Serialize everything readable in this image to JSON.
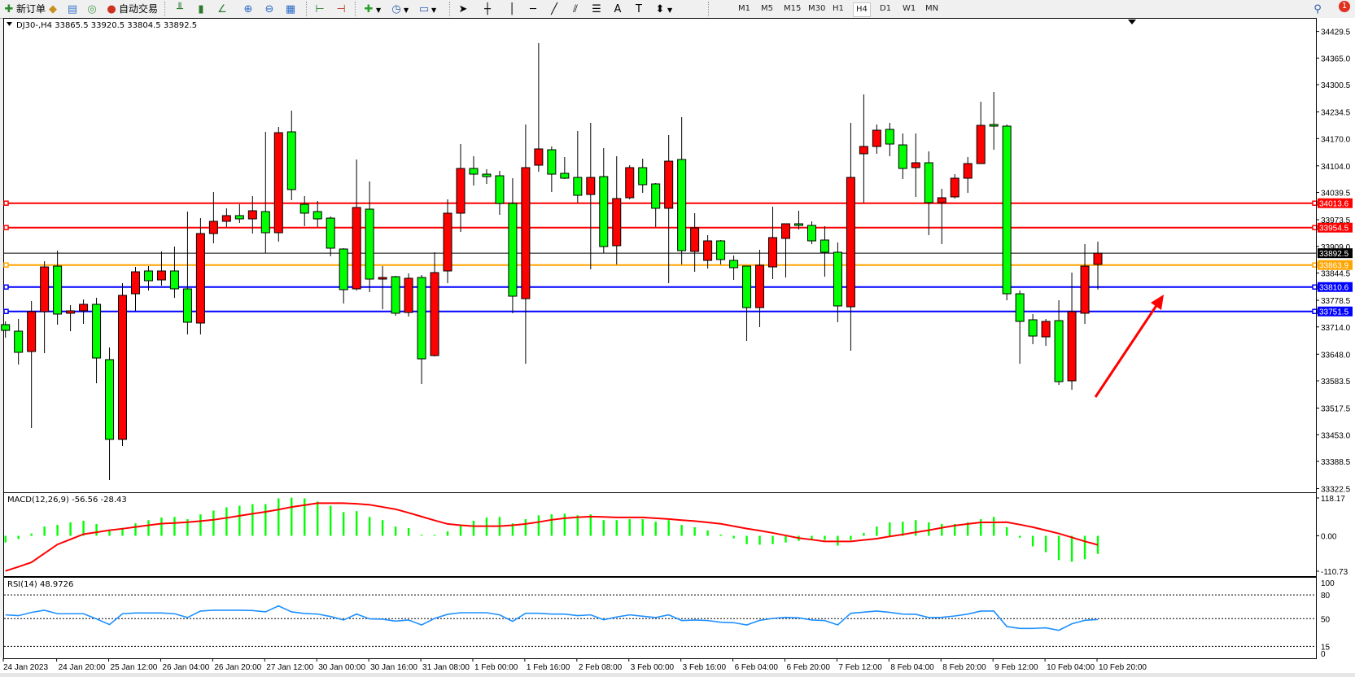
{
  "toolbar": {
    "new_order": "新订单",
    "auto_trading": "自动交易",
    "timeframes": [
      "M1",
      "M5",
      "M15",
      "M30",
      "H1",
      "H4",
      "D1",
      "W1",
      "MN"
    ],
    "active_timeframe": "H4",
    "notification_count": "1",
    "icons": [
      "new-order-icon",
      "history-icon",
      "navigator-icon",
      "signal-icon",
      "auto-trading-icon",
      "bar-chart-icon",
      "candlestick-icon",
      "line-chart-icon",
      "zoom-in-icon",
      "zoom-out-icon",
      "tile-windows-icon",
      "chart-shift-icon",
      "autoscroll-icon",
      "indicators-icon",
      "periods-icon",
      "templates-icon",
      "cursor-icon",
      "crosshair-icon",
      "vertical-line-icon",
      "horizontal-line-icon",
      "trendline-icon",
      "equidistant-channel-icon",
      "fibonacci-icon",
      "text-icon",
      "text-label-icon",
      "arrows-icon",
      "search-icon",
      "notification-icon"
    ]
  },
  "chart": {
    "header": "DJ30-,H4  33865.5 33920.5 33804.5 33892.5",
    "symbol": "DJ30-",
    "timeframe": "H4",
    "up_color": "#ff0000",
    "down_color": "#00ff00",
    "price_ticks": [
      "34429.5",
      "34365.0",
      "34300.5",
      "34234.5",
      "34170.0",
      "34104.0",
      "34039.5",
      "33973.5",
      "33909.0",
      "33844.5",
      "33778.5",
      "33714.0",
      "33648.0",
      "33583.5",
      "33517.5",
      "33453.0",
      "33388.5",
      "33322.5"
    ],
    "price_range": [
      33322.5,
      34429.5
    ],
    "current_price": {
      "value": "33892.5",
      "color": "#000000"
    },
    "levels": [
      {
        "value": "34013.6",
        "color": "#ff0000"
      },
      {
        "value": "33954.5",
        "color": "#ff0000"
      },
      {
        "value": "33863.9",
        "color": "#ffa500"
      },
      {
        "value": "33810.6",
        "color": "#0000ff"
      },
      {
        "value": "33751.5",
        "color": "#0000ff"
      }
    ],
    "time_labels": [
      "24 Jan 2023",
      "24 Jan 20:00",
      "25 Jan 12:00",
      "26 Jan 04:00",
      "26 Jan 20:00",
      "27 Jan 12:00",
      "30 Jan 00:00",
      "30 Jan 16:00",
      "31 Jan 08:00",
      "1 Feb 00:00",
      "1 Feb 16:00",
      "2 Feb 08:00",
      "3 Feb 00:00",
      "3 Feb 16:00",
      "6 Feb 04:00",
      "6 Feb 20:00",
      "7 Feb 12:00",
      "8 Feb 04:00",
      "8 Feb 20:00",
      "9 Feb 12:00",
      "10 Feb 04:00",
      "10 Feb 20:00"
    ],
    "annotation_arrow_color": "#ff0000"
  },
  "chart_data": [
    {
      "type": "candlestick",
      "title": "DJ30-,H4",
      "fields": [
        "open",
        "high",
        "low",
        "close"
      ],
      "ylim": [
        33322.5,
        34429.5
      ],
      "ohlc": [
        [
          33719.5,
          33727.4,
          33688.0,
          33705.7
        ],
        [
          33703.7,
          33733.3,
          33623.0,
          33652.5
        ],
        [
          33654.5,
          33776.6,
          33469.3,
          33751.0
        ],
        [
          33751.0,
          33873.1,
          33650.5,
          33859.3
        ],
        [
          33861.3,
          33898.7,
          33719.5,
          33745.1
        ],
        [
          33747.1,
          33766.8,
          33703.7,
          33753.0
        ],
        [
          33753.0,
          33780.5,
          33721.4,
          33768.7
        ],
        [
          33768.7,
          33784.5,
          33577.6,
          33638.7
        ],
        [
          33634.8,
          33664.3,
          33343.2,
          33441.7
        ],
        [
          33441.7,
          33819.9,
          33425.9,
          33790.4
        ],
        [
          33794.3,
          33859.3,
          33753.0,
          33847.5
        ],
        [
          33849.5,
          33861.3,
          33802.2,
          33825.9
        ],
        [
          33827.8,
          33896.8,
          33814.0,
          33849.5
        ],
        [
          33849.5,
          33908.6,
          33784.5,
          33806.2
        ],
        [
          33806.2,
          33993.3,
          33695.8,
          33725.4
        ],
        [
          33723.4,
          33977.5,
          33695.8,
          33940.1
        ],
        [
          33940.1,
          34040.6,
          33916.5,
          33969.7
        ],
        [
          33969.7,
          34001.2,
          33955.9,
          33983.5
        ],
        [
          33983.5,
          34011.0,
          33965.7,
          33975.6
        ],
        [
          33975.6,
          34030.7,
          33940.1,
          33995.3
        ],
        [
          33993.3,
          34186.4,
          33892.8,
          33942.1
        ],
        [
          33942.1,
          34198.2,
          33920.4,
          34184.4
        ],
        [
          34186.4,
          34237.6,
          34020.9,
          34046.5
        ],
        [
          34011.0,
          34030.7,
          33957.8,
          33989.4
        ],
        [
          33993.3,
          34018.9,
          33955.9,
          33975.6
        ],
        [
          33977.5,
          33981.5,
          33885.0,
          33904.7
        ],
        [
          33902.7,
          33904.7,
          33770.7,
          33804.2
        ],
        [
          33806.2,
          34119.4,
          33802.2,
          34003.2
        ],
        [
          33999.2,
          34066.2,
          33798.3,
          33829.8
        ],
        [
          33829.8,
          33861.3,
          33756.9,
          33833.7
        ],
        [
          33835.7,
          33837.7,
          33741.1,
          33747.1
        ],
        [
          33749.0,
          33843.6,
          33739.2,
          33831.8
        ],
        [
          33833.7,
          33839.6,
          33575.7,
          33636.7
        ],
        [
          33644.6,
          33894.8,
          33642.6,
          33845.6
        ],
        [
          33849.5,
          34022.9,
          33820.0,
          33989.4
        ],
        [
          33989.4,
          34156.8,
          33944.1,
          34097.7
        ],
        [
          34097.7,
          34127.3,
          34056.3,
          34083.9
        ],
        [
          34083.9,
          34095.7,
          34060.3,
          34078.0
        ],
        [
          34080.0,
          34091.8,
          33985.4,
          34013.0
        ],
        [
          34013.0,
          34074.1,
          33747.1,
          33788.4
        ],
        [
          33782.5,
          34204.1,
          33624.9,
          34099.7
        ],
        [
          34105.6,
          34401.1,
          34089.8,
          34145.0
        ],
        [
          34143.0,
          34150.9,
          34040.6,
          34083.9
        ],
        [
          34085.9,
          34125.3,
          34072.1,
          34074.1
        ],
        [
          34076.0,
          34188.3,
          34015.0,
          34032.7
        ],
        [
          34034.7,
          34208.0,
          33853.4,
          34076.0
        ],
        [
          34078.0,
          34147.0,
          33892.8,
          33908.6
        ],
        [
          33910.6,
          34127.3,
          33865.3,
          34024.8
        ],
        [
          34026.8,
          34105.6,
          34022.9,
          34099.7
        ],
        [
          34099.7,
          34121.4,
          34038.6,
          34058.3
        ],
        [
          34060.3,
          34062.3,
          33955.9,
          34001.2
        ],
        [
          34001.2,
          34178.5,
          33819.9,
          34115.4
        ],
        [
          34119.4,
          34221.8,
          33865.3,
          33898.7
        ],
        [
          33896.8,
          33989.4,
          33847.5,
          33953.9
        ],
        [
          33875.1,
          33936.2,
          33855.4,
          33922.4
        ],
        [
          33922.4,
          33924.4,
          33865.3,
          33877.1
        ],
        [
          33875.1,
          33886.9,
          33827.8,
          33857.4
        ],
        [
          33861.3,
          33861.3,
          33680.1,
          33760.8
        ],
        [
          33760.8,
          33900.7,
          33713.6,
          33863.3
        ],
        [
          33859.3,
          34005.1,
          33829.8,
          33930.3
        ],
        [
          33928.3,
          33963.8,
          33833.7,
          33963.8
        ],
        [
          33963.8,
          33995.3,
          33950.0,
          33959.8
        ],
        [
          33959.8,
          33969.7,
          33914.5,
          33922.4
        ],
        [
          33924.4,
          33957.8,
          33835.7,
          33894.8
        ],
        [
          33894.8,
          33918.4,
          33725.4,
          33764.8
        ],
        [
          33762.8,
          34208.0,
          33656.4,
          34076.0
        ],
        [
          34133.2,
          34277.0,
          34015.0,
          34150.9
        ],
        [
          34150.9,
          34204.1,
          34133.2,
          34190.3
        ],
        [
          34192.3,
          34208.0,
          34127.3,
          34156.8
        ],
        [
          34154.8,
          34182.4,
          34072.1,
          34097.7
        ],
        [
          34099.7,
          34182.4,
          34028.8,
          34111.5
        ],
        [
          34111.5,
          34139.1,
          33936.2,
          34015.0
        ],
        [
          34015.0,
          34048.5,
          33914.5,
          34026.8
        ],
        [
          34028.8,
          34083.9,
          34024.8,
          34074.1
        ],
        [
          34074.1,
          34125.3,
          34038.6,
          34109.5
        ],
        [
          34109.5,
          34259.3,
          34109.5,
          34202.1
        ],
        [
          34204.1,
          34282.9,
          34143.0,
          34200.2
        ],
        [
          34200.2,
          34204.1,
          33778.6,
          33794.3
        ],
        [
          33794.3,
          33802.2,
          33624.9,
          33727.4
        ],
        [
          33731.3,
          33745.1,
          33672.2,
          33691.9
        ],
        [
          33689.9,
          33733.3,
          33668.3,
          33727.4
        ],
        [
          33729.3,
          33778.6,
          33573.7,
          33581.6
        ],
        [
          33583.5,
          33845.6,
          33561.9,
          33751.0
        ],
        [
          33747.1,
          33914.5,
          33721.4,
          33861.3
        ],
        [
          33865.5,
          33920.5,
          33804.5,
          33892.5
        ]
      ]
    },
    {
      "type": "bar",
      "title": "MACD(12,26,9) -56.56 -28.43",
      "ticks": [
        "118.17",
        "0.00",
        "-110.73"
      ],
      "ylim": [
        -110.73,
        118.17
      ],
      "series": [
        {
          "name": "MACD",
          "color": "#00ff00",
          "values": [
            -21,
            -10,
            7,
            29,
            34,
            42,
            47,
            37,
            15,
            25,
            39,
            49,
            57,
            59,
            52,
            67,
            79,
            89,
            94,
            99,
            99,
            117,
            119,
            117,
            107,
            94,
            74,
            77,
            59,
            49,
            29,
            24,
            3,
            3,
            14,
            32,
            47,
            57,
            59,
            39,
            52,
            64,
            67,
            69,
            64,
            67,
            49,
            49,
            52,
            52,
            44,
            49,
            34,
            27,
            17,
            4,
            -8,
            -26,
            -28,
            -26,
            -21,
            -16,
            -13,
            -13,
            -31,
            -13,
            9,
            29,
            42,
            44,
            49,
            42,
            37,
            37,
            42,
            52,
            59,
            27,
            -6,
            -33,
            -51,
            -76,
            -81,
            -73,
            -56.56
          ]
        },
        {
          "name": "Signal",
          "color": "#ff0000",
          "values": [
            -110,
            -97,
            -83,
            -55,
            -27,
            -11,
            5,
            11,
            17.5,
            22,
            27.5,
            33,
            38,
            40,
            42.5,
            46,
            50,
            56,
            62.5,
            69,
            75,
            82,
            90,
            96,
            102,
            102,
            102,
            100,
            97,
            90,
            83,
            72,
            60,
            48,
            37,
            33,
            30,
            30,
            30,
            33,
            37,
            43,
            50,
            55,
            58,
            60,
            59,
            57.5,
            57.5,
            57.5,
            55,
            52.5,
            49,
            46,
            42,
            37.5,
            30,
            22.5,
            16,
            9,
            1,
            -7,
            -12,
            -17.5,
            -17.5,
            -17.5,
            -13,
            -9,
            -2,
            4,
            11,
            17.5,
            25,
            32,
            37,
            42,
            42,
            42.5,
            35,
            27,
            17,
            7,
            -5,
            -17.5,
            -28.43
          ]
        }
      ]
    },
    {
      "type": "line",
      "title": "RSI(14) 48.9726",
      "ticks": [
        "100",
        "80",
        "50",
        "15",
        "0"
      ],
      "ylim": [
        0,
        100
      ],
      "levels": [
        80,
        50,
        15
      ],
      "series": [
        {
          "name": "RSI",
          "color": "#1e90ff",
          "values": [
            54.8,
            53.8,
            57.9,
            60.6,
            56.2,
            56.2,
            56.2,
            49.7,
            42.5,
            56.2,
            57.2,
            57.2,
            57.2,
            56.2,
            51.4,
            59.6,
            60.6,
            60.6,
            60.6,
            60.3,
            58.6,
            66.1,
            58.6,
            56.5,
            55.8,
            52.7,
            48.3,
            55.8,
            49.7,
            49.3,
            46.9,
            48.3,
            42.1,
            50.3,
            55.5,
            57.5,
            57.5,
            57.5,
            54.8,
            46.6,
            56.8,
            56.8,
            55.8,
            55.8,
            53.8,
            54.8,
            48.6,
            52.1,
            54.8,
            53.1,
            51.4,
            54.8,
            47.6,
            48.3,
            47.6,
            45.5,
            44.9,
            42.1,
            47.9,
            50.3,
            51.7,
            51.0,
            48.3,
            47.6,
            42.1,
            56.8,
            58.2,
            59.6,
            57.9,
            55.8,
            55.5,
            51.4,
            51.7,
            53.4,
            55.8,
            59.6,
            59.6,
            40.1,
            37.7,
            37.7,
            38.4,
            35.3,
            43.5,
            47.9,
            48.9726
          ]
        }
      ]
    }
  ]
}
